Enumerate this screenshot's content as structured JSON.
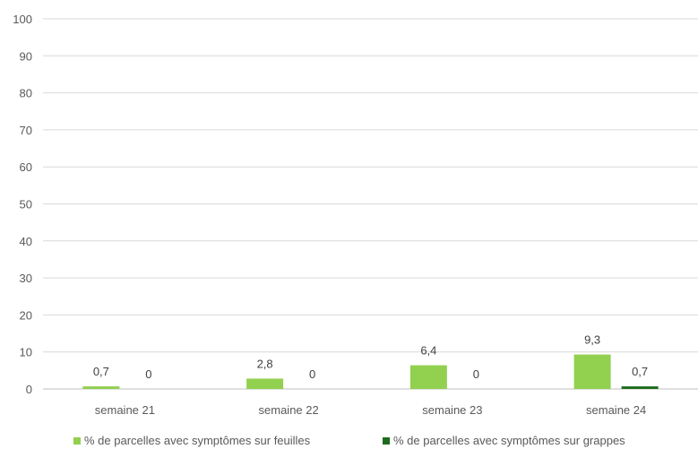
{
  "chart_data": {
    "type": "bar",
    "categories": [
      "semaine 21",
      "semaine 22",
      "semaine 23",
      "semaine 24"
    ],
    "series": [
      {
        "name": "% de parcelles avec symptômes sur feuilles",
        "values": [
          0.7,
          2.8,
          6.4,
          9.3
        ],
        "labels": [
          "0,7",
          "2,8",
          "6,4",
          "9,3"
        ],
        "color": "#92d050"
      },
      {
        "name": "% de parcelles avec symptômes sur grappes",
        "values": [
          0,
          0,
          0,
          0.7
        ],
        "labels": [
          "0",
          "0",
          "0",
          "0,7"
        ],
        "color": "#1e6b1e"
      }
    ],
    "yticks": [
      "0",
      "10",
      "20",
      "30",
      "40",
      "50",
      "60",
      "70",
      "80",
      "90",
      "100"
    ],
    "ylim": [
      0,
      100
    ],
    "grid": true,
    "legend_position": "bottom"
  }
}
